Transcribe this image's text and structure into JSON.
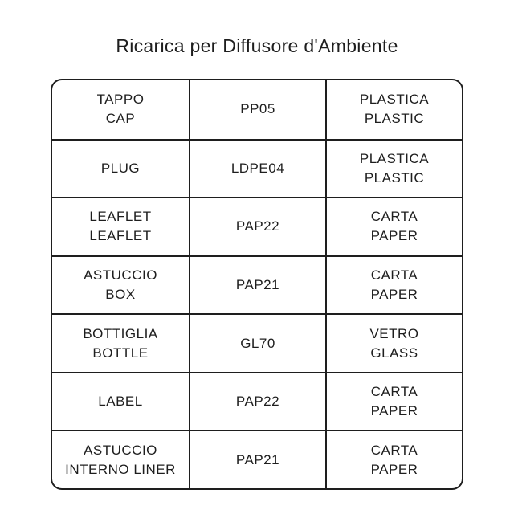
{
  "title": "Ricarica per Diffusore d'Ambiente",
  "colors": {
    "text": "#1e1e1e",
    "border": "#1e1e1e",
    "background": "#ffffff"
  },
  "table": {
    "columns": [
      "component",
      "material_code",
      "material_type"
    ],
    "rows": [
      {
        "component": "TAPPO\nCAP",
        "code": "PP05",
        "material": "PLASTICA\nPLASTIC"
      },
      {
        "component": "PLUG",
        "code": "LDPE04",
        "material": "PLASTICA\nPLASTIC"
      },
      {
        "component": "LEAFLET\nLEAFLET",
        "code": "PAP22",
        "material": "CARTA\nPAPER"
      },
      {
        "component": "ASTUCCIO\nBOX",
        "code": "PAP21",
        "material": "CARTA\nPAPER"
      },
      {
        "component": "BOTTIGLIA\nBOTTLE",
        "code": "GL70",
        "material": "VETRO\nGLASS"
      },
      {
        "component": "LABEL",
        "code": "PAP22",
        "material": "CARTA\nPAPER"
      },
      {
        "component": "ASTUCCIO\nINTERNO LINER",
        "code": "PAP21",
        "material": "CARTA\nPAPER"
      }
    ]
  }
}
